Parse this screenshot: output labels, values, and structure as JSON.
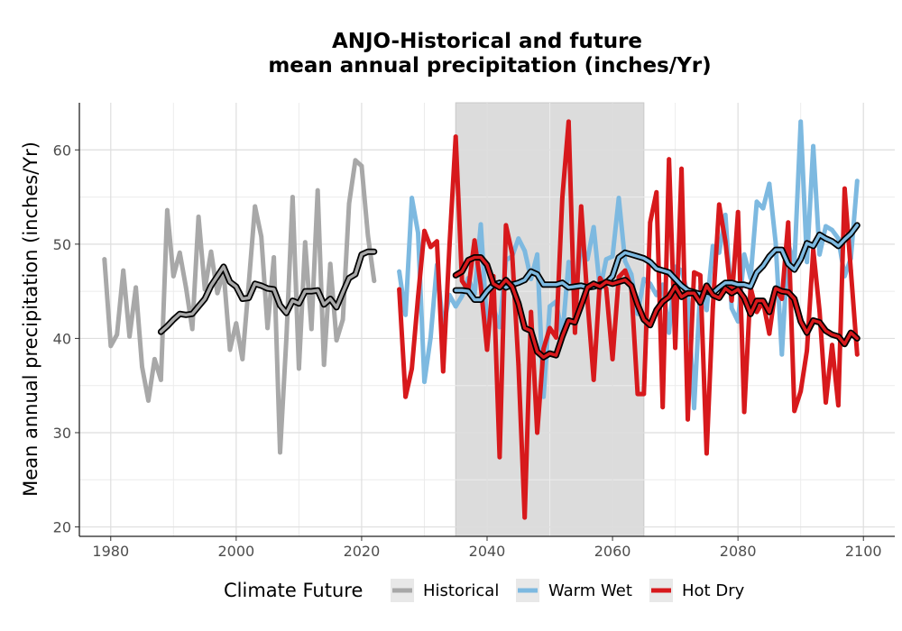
{
  "chart_data": {
    "type": "line",
    "title": "ANJO-Historical and future",
    "subtitle": "mean annual precipitation (inches/Yr)",
    "xlabel": "",
    "ylabel": "Mean annual precipitation (inches/Yr)",
    "xlim": [
      1975,
      2105
    ],
    "ylim": [
      19,
      65
    ],
    "x_ticks": [
      1980,
      2000,
      2020,
      2040,
      2060,
      2080,
      2100
    ],
    "y_ticks": [
      20,
      30,
      40,
      50,
      60
    ],
    "grid": true,
    "shaded_period": [
      2035,
      2065
    ],
    "legend": {
      "title": "Climate Future",
      "placement": "bottom",
      "items": [
        {
          "label": "Historical",
          "color": "#a8a8a8"
        },
        {
          "label": "Warm Wet",
          "color": "#7db9e0"
        },
        {
          "label": "Hot Dry",
          "color": "#d7191c"
        }
      ]
    },
    "series": [
      {
        "name": "Historical",
        "color": "#a8a8a8",
        "x": [
          1979,
          1980,
          1981,
          1982,
          1983,
          1984,
          1985,
          1986,
          1987,
          1988,
          1989,
          1990,
          1991,
          1992,
          1993,
          1994,
          1995,
          1996,
          1997,
          1998,
          1999,
          2000,
          2001,
          2002,
          2003,
          2004,
          2005,
          2006,
          2007,
          2008,
          2009,
          2010,
          2011,
          2012,
          2013,
          2014,
          2015,
          2016,
          2017,
          2018,
          2019,
          2020,
          2021,
          2022
        ],
        "values": [
          48.4,
          39.2,
          40.4,
          47.2,
          40.2,
          45.4,
          37.0,
          33.4,
          37.8,
          35.6,
          53.6,
          46.6,
          49.1,
          45.4,
          41.0,
          52.9,
          45.2,
          49.2,
          44.8,
          47.1,
          38.8,
          41.6,
          37.8,
          45.8,
          54.0,
          50.8,
          41.1,
          48.6,
          27.9,
          40.0,
          55.0,
          36.8,
          50.2,
          41.0,
          55.7,
          37.2,
          47.9,
          39.8,
          42.0,
          54.3,
          58.9,
          58.3,
          50.9,
          46.1
        ]
      },
      {
        "name": "Historical",
        "color": "#a8a8a8",
        "smoothed": true,
        "x": [
          1988,
          1989,
          1990,
          1991,
          1992,
          1993,
          1994,
          1995,
          1996,
          1997,
          1998,
          1999,
          2000,
          2001,
          2002,
          2003,
          2004,
          2005,
          2006,
          2007,
          2008,
          2009,
          2010,
          2011,
          2012,
          2013,
          2014,
          2015,
          2016,
          2017,
          2018,
          2019,
          2020,
          2021,
          2022
        ],
        "values": [
          40.7,
          41.3,
          42.0,
          42.6,
          42.5,
          42.6,
          43.4,
          44.2,
          45.6,
          46.6,
          47.6,
          46.0,
          45.5,
          44.2,
          44.3,
          45.8,
          45.6,
          45.3,
          45.2,
          43.5,
          42.7,
          44.0,
          43.7,
          45.0,
          45.0,
          45.1,
          43.6,
          44.2,
          43.3,
          44.9,
          46.4,
          46.8,
          48.9,
          49.2,
          49.2
        ]
      },
      {
        "name": "Warm Wet",
        "color": "#7db9e0",
        "x": [
          2026,
          2027,
          2028,
          2029,
          2030,
          2031,
          2032,
          2033,
          2034,
          2035,
          2036,
          2037,
          2038,
          2039,
          2040,
          2041,
          2042,
          2043,
          2044,
          2045,
          2046,
          2047,
          2048,
          2049,
          2050,
          2051,
          2052,
          2053,
          2054,
          2055,
          2056,
          2057,
          2058,
          2059,
          2060,
          2061,
          2062,
          2063,
          2064,
          2065,
          2066,
          2067,
          2068,
          2069,
          2070,
          2071,
          2072,
          2073,
          2074,
          2075,
          2076,
          2077,
          2078,
          2079,
          2080,
          2081,
          2082,
          2083,
          2084,
          2085,
          2086,
          2087,
          2088,
          2089,
          2090,
          2091,
          2092,
          2093,
          2094,
          2095,
          2096,
          2097,
          2098,
          2099
        ],
        "values": [
          47.1,
          42.5,
          54.9,
          51.2,
          35.4,
          40.1,
          47.8,
          41.1,
          44.6,
          43.4,
          44.5,
          46.4,
          44.7,
          52.1,
          41.3,
          43.3,
          41.2,
          48.3,
          48.7,
          50.6,
          49.3,
          46.3,
          48.9,
          33.8,
          43.4,
          43.9,
          40.2,
          48.1,
          44.2,
          49.8,
          48.4,
          51.8,
          45.2,
          48.4,
          48.7,
          54.9,
          48.2,
          46.8,
          42.6,
          46.3,
          45.8,
          44.6,
          45.7,
          40.6,
          47.6,
          47.2,
          44.7,
          32.6,
          45.5,
          43.0,
          49.8,
          49.1,
          53.1,
          43.2,
          41.8,
          48.9,
          46.4,
          54.5,
          53.8,
          56.4,
          50.2,
          38.3,
          50.0,
          47.9,
          63.0,
          48.1,
          60.4,
          48.9,
          51.9,
          51.5,
          50.6,
          46.6,
          48.5,
          56.7
        ]
      },
      {
        "name": "Warm Wet",
        "color": "#7db9e0",
        "smoothed": true,
        "x": [
          2035,
          2036,
          2037,
          2038,
          2039,
          2040,
          2041,
          2042,
          2043,
          2044,
          2045,
          2046,
          2047,
          2048,
          2049,
          2050,
          2051,
          2052,
          2053,
          2054,
          2055,
          2056,
          2057,
          2058,
          2059,
          2060,
          2061,
          2062,
          2063,
          2064,
          2065,
          2066,
          2067,
          2068,
          2069,
          2070,
          2071,
          2072,
          2073,
          2074,
          2075,
          2076,
          2077,
          2078,
          2079,
          2080,
          2081,
          2082,
          2083,
          2084,
          2085,
          2086,
          2087,
          2088,
          2089,
          2090,
          2091,
          2092,
          2093,
          2094,
          2095,
          2096,
          2097,
          2098,
          2099
        ],
        "values": [
          45.1,
          45.1,
          45.0,
          44.1,
          44.1,
          45.0,
          45.7,
          45.9,
          45.4,
          45.7,
          45.9,
          46.2,
          47.1,
          46.8,
          45.7,
          45.7,
          45.7,
          45.9,
          45.4,
          45.5,
          45.6,
          45.4,
          45.5,
          45.7,
          45.9,
          46.6,
          48.6,
          49.1,
          48.9,
          48.7,
          48.5,
          48.1,
          47.4,
          47.2,
          47.0,
          46.3,
          45.6,
          45.1,
          44.9,
          44.7,
          45.0,
          44.8,
          45.4,
          45.9,
          45.9,
          45.7,
          45.7,
          45.5,
          47.0,
          47.7,
          48.7,
          49.4,
          49.4,
          47.9,
          47.3,
          48.4,
          50.1,
          49.8,
          51.0,
          50.6,
          50.3,
          49.8,
          50.5,
          51.1,
          52.0
        ]
      },
      {
        "name": "Hot Dry",
        "color": "#d7191c",
        "x": [
          2026,
          2027,
          2028,
          2029,
          2030,
          2031,
          2032,
          2033,
          2034,
          2035,
          2036,
          2037,
          2038,
          2039,
          2040,
          2041,
          2042,
          2043,
          2044,
          2045,
          2046,
          2047,
          2048,
          2049,
          2050,
          2051,
          2052,
          2053,
          2054,
          2055,
          2056,
          2057,
          2058,
          2059,
          2060,
          2061,
          2062,
          2063,
          2064,
          2065,
          2066,
          2067,
          2068,
          2069,
          2070,
          2071,
          2072,
          2073,
          2074,
          2075,
          2076,
          2077,
          2078,
          2079,
          2080,
          2081,
          2082,
          2083,
          2084,
          2085,
          2086,
          2087,
          2088,
          2089,
          2090,
          2091,
          2092,
          2093,
          2094,
          2095,
          2096,
          2097,
          2098,
          2099
        ],
        "values": [
          45.2,
          33.8,
          36.8,
          44.4,
          51.4,
          49.7,
          50.3,
          36.5,
          49.8,
          61.4,
          46.1,
          45.1,
          50.4,
          45.6,
          38.8,
          46.6,
          27.4,
          52.0,
          49.0,
          37.2,
          21.0,
          42.8,
          30.0,
          38.9,
          41.1,
          40.1,
          54.9,
          63.0,
          40.6,
          54.0,
          44.0,
          35.6,
          46.4,
          45.3,
          37.8,
          46.5,
          47.2,
          45.4,
          34.1,
          34.1,
          52.3,
          55.5,
          32.7,
          59.0,
          39.0,
          58.0,
          31.4,
          47.0,
          46.7,
          27.8,
          43.3,
          54.2,
          50.3,
          44.0,
          53.4,
          32.2,
          45.4,
          42.8,
          43.9,
          40.5,
          45.3,
          44.2,
          52.3,
          32.3,
          34.4,
          38.7,
          49.4,
          42.9,
          33.2,
          39.3,
          32.9,
          55.9,
          47.2,
          38.3
        ]
      },
      {
        "name": "Hot Dry",
        "color": "#d7191c",
        "smoothed": true,
        "x": [
          2035,
          2036,
          2037,
          2038,
          2039,
          2040,
          2041,
          2042,
          2043,
          2044,
          2045,
          2046,
          2047,
          2048,
          2049,
          2050,
          2051,
          2052,
          2053,
          2054,
          2055,
          2056,
          2057,
          2058,
          2059,
          2060,
          2061,
          2062,
          2063,
          2064,
          2065,
          2066,
          2067,
          2068,
          2069,
          2070,
          2071,
          2072,
          2073,
          2074,
          2075,
          2076,
          2077,
          2078,
          2079,
          2080,
          2081,
          2082,
          2083,
          2084,
          2085,
          2086,
          2087,
          2088,
          2089,
          2090,
          2091,
          2092,
          2093,
          2094,
          2095,
          2096,
          2097,
          2098,
          2099
        ],
        "values": [
          46.7,
          47.1,
          48.3,
          48.6,
          48.6,
          47.8,
          45.8,
          45.4,
          46.2,
          45.5,
          43.7,
          41.1,
          40.8,
          38.6,
          38.0,
          38.4,
          38.2,
          40.2,
          41.9,
          41.7,
          43.5,
          45.4,
          45.8,
          45.5,
          46.0,
          45.8,
          46.0,
          46.2,
          45.6,
          43.6,
          42.0,
          41.4,
          43.0,
          43.9,
          44.4,
          45.5,
          44.4,
          44.8,
          44.8,
          43.8,
          45.6,
          44.6,
          44.3,
          45.3,
          44.8,
          45.2,
          44.3,
          42.6,
          44.0,
          44.0,
          42.8,
          45.3,
          45.0,
          44.9,
          44.2,
          41.8,
          40.6,
          41.9,
          41.7,
          40.8,
          40.4,
          40.2,
          39.4,
          40.6,
          40.0
        ]
      }
    ]
  }
}
